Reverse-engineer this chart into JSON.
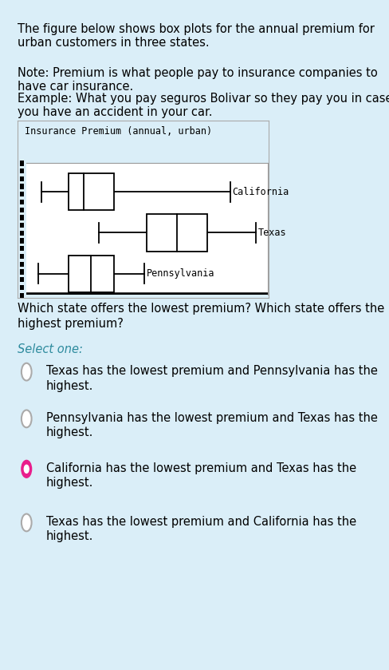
{
  "title_line1": "The figure below shows box plots for the annual premium for",
  "title_line2": "urban customers in three states.",
  "note_line1": "Note: Premium is what people pay to insurance companies to",
  "note_line2": "have car insurance.",
  "note_line3": "Example: What you pay seguros Bolivar so they pay you in case",
  "note_line4": "you have an accident in your car.",
  "chart_title": "Insurance Premium (annual, urban)",
  "background_color": "#daeef8",
  "box_bg": "#ffffff",
  "question_line1": "Which state offers the lowest premium? Which state offers the",
  "question_line2": "highest premium?",
  "select_label": "Select one:",
  "opt1_line1": "Texas has the lowest premium and Pennsylvania has the",
  "opt1_line2": "highest.",
  "opt2_line1": "Pennsylvania has the lowest premium and Texas has the",
  "opt2_line2": "highest.",
  "opt3_line1": "California has the lowest premium and Texas has the",
  "opt3_line2": "highest.",
  "opt4_line1": "Texas has the lowest premium and California has the",
  "opt4_line2": "highest.",
  "selected_option": 2,
  "radio_selected_color": "#e91e8c",
  "radio_unselected_color": "#aaaaaa",
  "california": {
    "min": 1.0,
    "q1": 2.8,
    "median": 3.8,
    "q3": 5.8,
    "max": 13.5
  },
  "texas": {
    "min": 4.8,
    "q1": 8.0,
    "median": 10.0,
    "q3": 12.0,
    "max": 15.2
  },
  "pennsylvania": {
    "min": 0.8,
    "q1": 2.8,
    "median": 4.3,
    "q3": 5.8,
    "max": 7.8
  },
  "xlim": [
    0,
    16
  ],
  "select_color": "#2e8b9e",
  "font_size_main": 10.5,
  "font_size_chart_title": 8.5,
  "font_size_bp_label": 8.5
}
